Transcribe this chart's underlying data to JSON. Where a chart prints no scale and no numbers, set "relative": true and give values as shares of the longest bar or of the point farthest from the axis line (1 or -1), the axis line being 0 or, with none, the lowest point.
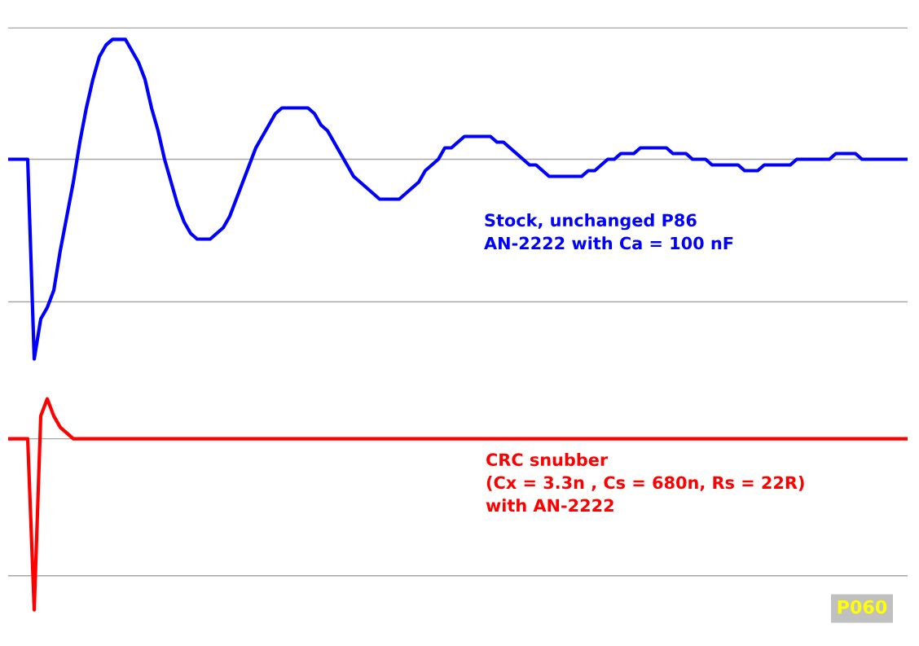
{
  "chart_data": {
    "type": "line",
    "relative": true,
    "categories": [
      null,
      null,
      null,
      null,
      null,
      null,
      null,
      null,
      null,
      null,
      null,
      null,
      null,
      null,
      null,
      null,
      null,
      null,
      null,
      null,
      null,
      null,
      null,
      null,
      null,
      null,
      null,
      null,
      null,
      null,
      null,
      null,
      null,
      null,
      null,
      null,
      null,
      null,
      null,
      null,
      null,
      null,
      null,
      null,
      null,
      null,
      null,
      null,
      null,
      null,
      null,
      null,
      null,
      null,
      null,
      null,
      null,
      null,
      null,
      null,
      null,
      null,
      null,
      null,
      null,
      null,
      null,
      null,
      null,
      null,
      null,
      null,
      null,
      null,
      null,
      null,
      null,
      null,
      null,
      null,
      null,
      null,
      null,
      null,
      null,
      null,
      null,
      null,
      null,
      null,
      null,
      null,
      null,
      null,
      null,
      null,
      null,
      null,
      null,
      null,
      null,
      null,
      null,
      null,
      null,
      null,
      null,
      null,
      null,
      null,
      null,
      null,
      null,
      null,
      null,
      null,
      null,
      null,
      null,
      null,
      null,
      null,
      null,
      null,
      null,
      null,
      null,
      null,
      null,
      null,
      null,
      null,
      null,
      null,
      null,
      null,
      null,
      null,
      null
    ],
    "series": [
      {
        "name": "Stock, unchanged P86\nAN-2222 with Ca = 100 nF",
        "color": "#0000ff",
        "values": [
          0.79,
          0.79,
          0.79,
          0.79,
          0.44,
          0.51,
          0.53,
          0.56,
          0.63,
          0.69,
          0.75,
          0.82,
          0.88,
          0.93,
          0.97,
          0.99,
          1.0,
          1.0,
          1.0,
          0.98,
          0.96,
          0.93,
          0.88,
          0.84,
          0.79,
          0.75,
          0.71,
          0.68,
          0.66,
          0.65,
          0.65,
          0.65,
          0.66,
          0.67,
          0.69,
          0.72,
          0.75,
          0.78,
          0.81,
          0.83,
          0.85,
          0.87,
          0.88,
          0.88,
          0.88,
          0.88,
          0.88,
          0.87,
          0.85,
          0.84,
          0.82,
          0.8,
          0.78,
          0.76,
          0.75,
          0.74,
          0.73,
          0.72,
          0.72,
          0.72,
          0.72,
          0.73,
          0.74,
          0.75,
          0.77,
          0.78,
          0.79,
          0.81,
          0.81,
          0.82,
          0.83,
          0.83,
          0.83,
          0.83,
          0.83,
          0.82,
          0.82,
          0.81,
          0.8,
          0.79,
          0.78,
          0.78,
          0.77,
          0.76,
          0.76,
          0.76,
          0.76,
          0.76,
          0.76,
          0.77,
          0.77,
          0.78,
          0.79,
          0.79,
          0.8,
          0.8,
          0.8,
          0.81,
          0.81,
          0.81,
          0.81,
          0.81,
          0.8,
          0.8,
          0.8,
          0.79,
          0.79,
          0.79,
          0.78,
          0.78,
          0.78,
          0.78,
          0.78,
          0.77,
          0.77,
          0.77,
          0.78,
          0.78,
          0.78,
          0.78,
          0.78,
          0.79,
          0.79,
          0.79,
          0.79,
          0.79,
          0.79,
          0.8,
          0.8,
          0.8,
          0.8,
          0.79,
          0.79,
          0.79,
          0.79,
          0.79,
          0.79,
          0.79,
          0.79
        ]
      },
      {
        "name": "CRC snubber\n(Cx = 3.3n , Cs = 680n, Rs = 22R)\nwith AN-2222",
        "color": "#ff0000",
        "values": [
          0.3,
          0.3,
          0.3,
          0.3,
          0.0,
          0.34,
          0.37,
          0.34,
          0.32,
          0.31,
          0.3,
          0.3,
          0.3,
          0.3,
          0.3,
          0.3,
          0.3,
          0.3,
          0.3,
          0.3,
          0.3,
          0.3,
          0.3,
          0.3,
          0.3,
          0.3,
          0.3,
          0.3,
          0.3,
          0.3,
          0.3,
          0.3,
          0.3,
          0.3,
          0.3,
          0.3,
          0.3,
          0.3,
          0.3,
          0.3,
          0.3,
          0.3,
          0.3,
          0.3,
          0.3,
          0.3,
          0.3,
          0.3,
          0.3,
          0.3,
          0.3,
          0.3,
          0.3,
          0.3,
          0.3,
          0.3,
          0.3,
          0.3,
          0.3,
          0.3,
          0.3,
          0.3,
          0.3,
          0.3,
          0.3,
          0.3,
          0.3,
          0.3,
          0.3,
          0.3,
          0.3,
          0.3,
          0.3,
          0.3,
          0.3,
          0.3,
          0.3,
          0.3,
          0.3,
          0.3,
          0.3,
          0.3,
          0.3,
          0.3,
          0.3,
          0.3,
          0.3,
          0.3,
          0.3,
          0.3,
          0.3,
          0.3,
          0.3,
          0.3,
          0.3,
          0.3,
          0.3,
          0.3,
          0.3,
          0.3,
          0.3,
          0.3,
          0.3,
          0.3,
          0.3,
          0.3,
          0.3,
          0.3,
          0.3,
          0.3,
          0.3,
          0.3,
          0.3,
          0.3,
          0.3,
          0.3,
          0.3,
          0.3,
          0.3,
          0.3,
          0.3,
          0.3,
          0.3,
          0.3,
          0.3,
          0.3,
          0.3,
          0.3,
          0.3,
          0.3,
          0.3,
          0.3,
          0.3,
          0.3,
          0.3,
          0.3,
          0.3,
          0.3,
          0.3
        ]
      }
    ],
    "ref_lines": [
      {
        "axis": "y",
        "value": 1.02,
        "color": "#a6a6a6"
      },
      {
        "axis": "y",
        "value": 0.79,
        "color": "#a6a6a6"
      },
      {
        "axis": "y",
        "value": 0.54,
        "color": "#a6a6a6"
      },
      {
        "axis": "y",
        "value": 0.3,
        "color": "#a6a6a6"
      },
      {
        "axis": "y",
        "value": 0.06,
        "color": "#a6a6a6"
      }
    ],
    "annotations": [
      "P060"
    ],
    "legend": false,
    "marker": "none",
    "line_style": "solid"
  }
}
